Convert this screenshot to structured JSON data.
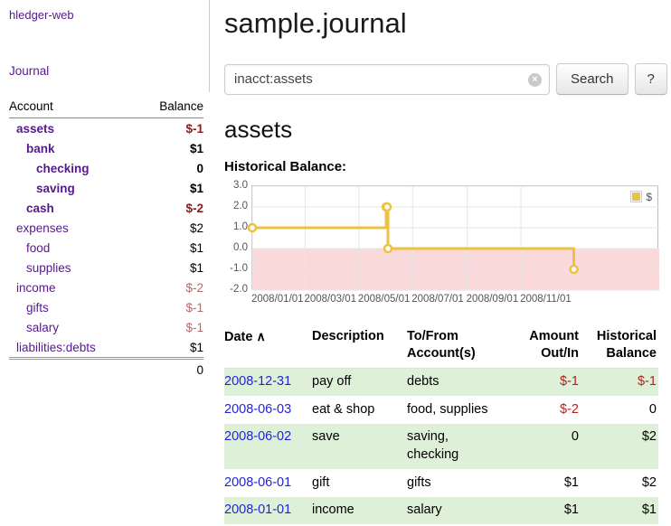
{
  "colors": {
    "purple": "#551a8b",
    "blue": "#2323d6",
    "neg_dark": "#8b1a1a",
    "neg_light": "#c06565",
    "neg": "#b22222",
    "row_green": "#dff0d8",
    "chart_yellow": "#edc240",
    "chart_negative_bg": "#f9d9d9"
  },
  "sidebar": {
    "app_title": "hledger-web",
    "journal_link": "Journal",
    "accounts": {
      "account_header": "Account",
      "balance_header": "Balance",
      "rows": [
        {
          "name": "assets",
          "depth": 0,
          "balance": "$-1",
          "bold": true,
          "name_negative": true,
          "balance_negative": true
        },
        {
          "name": "bank",
          "depth": 1,
          "balance": "$1",
          "bold": true,
          "name_negative": false,
          "balance_negative": false
        },
        {
          "name": "checking",
          "depth": 2,
          "balance": "0",
          "bold": true,
          "name_negative": false,
          "balance_negative": false
        },
        {
          "name": "saving",
          "depth": 2,
          "balance": "$1",
          "bold": true,
          "name_negative": false,
          "balance_negative": false
        },
        {
          "name": "cash",
          "depth": 1,
          "balance": "$-2",
          "bold": true,
          "name_negative": true,
          "balance_negative": true
        },
        {
          "name": "expenses",
          "depth": 0,
          "balance": "$2",
          "bold": false,
          "name_negative": false,
          "balance_negative": false
        },
        {
          "name": "food",
          "depth": 1,
          "balance": "$1",
          "bold": false,
          "name_negative": false,
          "balance_negative": false
        },
        {
          "name": "supplies",
          "depth": 1,
          "balance": "$1",
          "bold": false,
          "name_negative": false,
          "balance_negative": false
        },
        {
          "name": "income",
          "depth": 0,
          "balance": "$-2",
          "bold": false,
          "name_negative": false,
          "balance_negative": true
        },
        {
          "name": "gifts",
          "depth": 1,
          "balance": "$-1",
          "bold": false,
          "name_negative": false,
          "balance_negative": true
        },
        {
          "name": "salary",
          "depth": 1,
          "balance": "$-1",
          "bold": false,
          "name_negative": false,
          "balance_negative": true
        },
        {
          "name": "liabilities:debts",
          "depth": 0,
          "balance": "$1",
          "bold": false,
          "name_negative": false,
          "balance_negative": false
        }
      ],
      "total": "0"
    }
  },
  "header": {
    "title": "sample.journal"
  },
  "search": {
    "value": "inacct:assets",
    "clear_icon": "×",
    "search_button": "Search",
    "help_button": "?"
  },
  "account_page": {
    "heading": "assets",
    "chart_title": "Historical Balance:"
  },
  "chart_data": {
    "type": "line",
    "step": true,
    "title": "Historical Balance",
    "series": [
      {
        "name": "$",
        "color": "#edc240",
        "points": [
          {
            "date": "2008-01-01",
            "value": 1
          },
          {
            "date": "2008-06-01",
            "value": 2
          },
          {
            "date": "2008-06-02",
            "value": 2
          },
          {
            "date": "2008-06-03",
            "value": 0
          },
          {
            "date": "2008-12-31",
            "value": -1
          }
        ]
      }
    ],
    "ylim": [
      -2,
      3
    ],
    "yticks": [
      {
        "label": "3.0",
        "value": 3
      },
      {
        "label": "2.0",
        "value": 2
      },
      {
        "label": "1.0",
        "value": 1
      },
      {
        "label": "0.0",
        "value": 0
      },
      {
        "label": "-1.0",
        "value": -1
      },
      {
        "label": "-2.0",
        "value": -2
      }
    ],
    "x_domain": [
      "2008-01-01",
      "2009-04-07"
    ],
    "xticks": [
      {
        "label": "2008/01/01",
        "date": "2008-01-01"
      },
      {
        "label": "2008/03/01",
        "date": "2008-03-01"
      },
      {
        "label": "2008/05/01",
        "date": "2008-05-01"
      },
      {
        "label": "2008/07/01",
        "date": "2008-07-01"
      },
      {
        "label": "2008/09/01",
        "date": "2008-09-01"
      },
      {
        "label": "2008/11/01",
        "date": "2008-11-01"
      }
    ],
    "legend_position": "top-right",
    "negative_region_shaded": true,
    "grid": true
  },
  "register": {
    "headers": {
      "date": "Date",
      "sort_indicator": "∧",
      "description": "Description",
      "account": "To/From Account(s)",
      "amount": "Amount Out/In",
      "balance": "Historical Balance"
    },
    "rows": [
      {
        "date": "2008-12-31",
        "description": "pay off",
        "account": "debts",
        "amount": "$-1",
        "amount_negative": true,
        "balance": "$-1",
        "balance_negative": true
      },
      {
        "date": "2008-06-03",
        "description": "eat & shop",
        "account": "food, supplies",
        "amount": "$-2",
        "amount_negative": true,
        "balance": "0",
        "balance_negative": false
      },
      {
        "date": "2008-06-02",
        "description": "save",
        "account": "saving, checking",
        "amount": "0",
        "amount_negative": false,
        "balance": "$2",
        "balance_negative": false
      },
      {
        "date": "2008-06-01",
        "description": "gift",
        "account": "gifts",
        "amount": "$1",
        "amount_negative": false,
        "balance": "$2",
        "balance_negative": false
      },
      {
        "date": "2008-01-01",
        "description": "income",
        "account": "salary",
        "amount": "$1",
        "amount_negative": false,
        "balance": "$1",
        "balance_negative": false
      }
    ]
  }
}
